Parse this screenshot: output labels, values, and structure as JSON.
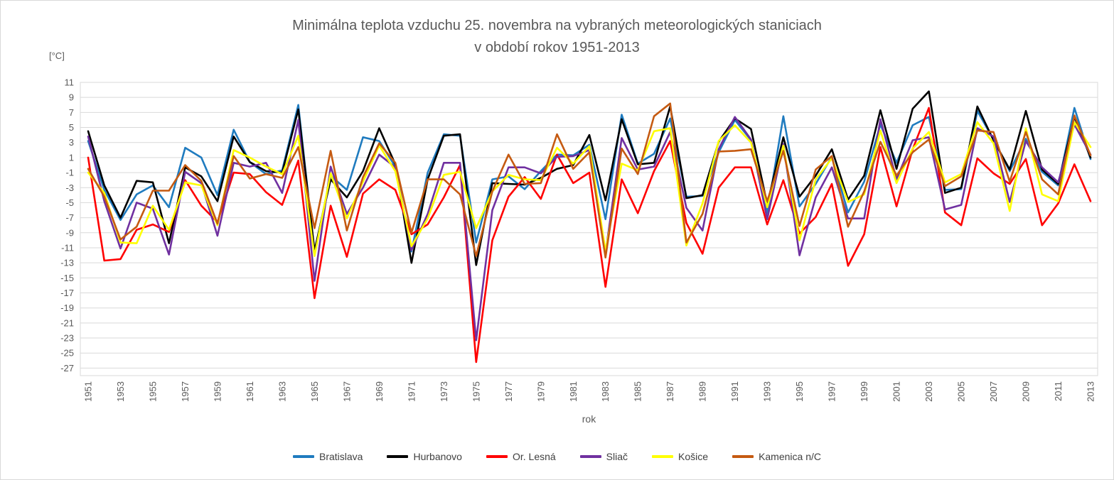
{
  "title": {
    "line1": "Minimálna teplota vzduchu 25. novembra na vybraných meteorologických staniciach",
    "line2": "v období rokov 1951-2013"
  },
  "y_axis": {
    "unit": "[°C]",
    "max": 11,
    "min": -28,
    "tick_max": 11,
    "tick_min": -27,
    "tick_step": 2
  },
  "x_axis": {
    "label": "rok",
    "first_year": 1951,
    "last_year": 2013,
    "label_step": 2
  },
  "colors": {
    "grid": "#d9d9d9",
    "plot_border": "#d9d9d9",
    "axis_text": "#595959",
    "title_text": "#595959",
    "legend_text": "#404040",
    "background": "#ffffff"
  },
  "chart_data": {
    "type": "line",
    "title": "Minimálna teplota vzduchu 25. novembra na vybraných meteorologických staniciach v období rokov 1951-2013",
    "xlabel": "rok",
    "ylabel": "[°C]",
    "ylim": [
      -27,
      11
    ],
    "grid": true,
    "legend_position": "bottom",
    "x": [
      1951,
      1952,
      1953,
      1954,
      1955,
      1956,
      1957,
      1958,
      1959,
      1960,
      1961,
      1962,
      1963,
      1964,
      1965,
      1966,
      1967,
      1968,
      1969,
      1970,
      1971,
      1972,
      1973,
      1974,
      1975,
      1976,
      1977,
      1978,
      1979,
      1980,
      1981,
      1982,
      1983,
      1984,
      1985,
      1986,
      1987,
      1988,
      1989,
      1990,
      1991,
      1992,
      1993,
      1994,
      1995,
      1996,
      1997,
      1998,
      1999,
      2000,
      2001,
      2002,
      2003,
      2004,
      2005,
      2006,
      2007,
      2008,
      2009,
      2010,
      2011,
      2012,
      2013
    ],
    "series": [
      {
        "name": "Bratislava",
        "color": "#1f7bbf",
        "values": [
          3.2,
          -3.3,
          -7.3,
          -3.9,
          -2.7,
          -5.6,
          2.3,
          1.0,
          -4.0,
          4.7,
          0.4,
          -1.2,
          -0.7,
          8.0,
          -11.6,
          -1.4,
          -3.3,
          3.7,
          3.2,
          -0.2,
          -11.5,
          -1.0,
          4.1,
          3.9,
          -10.3,
          -1.9,
          -1.5,
          -3.2,
          -0.8,
          1.4,
          1.3,
          2.7,
          -7.2,
          6.7,
          0.2,
          1.5,
          6.2,
          -4.2,
          -4.1,
          1.7,
          6.0,
          3.3,
          -6.4,
          6.5,
          -5.5,
          -2.5,
          1.1,
          -6.3,
          -2.2,
          5.4,
          0.3,
          5.3,
          6.4,
          -3.3,
          -3.2,
          7.2,
          3.4,
          -0.8,
          3.5,
          -0.9,
          -2.7,
          7.6,
          0.8
        ]
      },
      {
        "name": "Hurbanovo",
        "color": "#000000",
        "values": [
          4.5,
          -2.7,
          -7.0,
          -2.1,
          -2.3,
          -10.4,
          -0.3,
          -1.5,
          -4.8,
          3.8,
          0.4,
          -0.8,
          -1.0,
          7.4,
          -11.4,
          -1.9,
          -4.3,
          -0.8,
          4.9,
          0.1,
          -13.0,
          -1.9,
          3.9,
          4.1,
          -13.3,
          -2.4,
          -2.5,
          -2.6,
          -1.7,
          -0.5,
          0.0,
          4.0,
          -4.7,
          6.1,
          0.1,
          0.3,
          7.8,
          -4.4,
          -4.0,
          3.1,
          6.2,
          4.8,
          -5.2,
          3.7,
          -4.2,
          -1.4,
          2.1,
          -4.6,
          -1.4,
          7.3,
          -0.5,
          7.5,
          9.8,
          -3.7,
          -3.0,
          7.8,
          3.3,
          -0.6,
          7.2,
          -0.6,
          -2.5,
          6.4,
          1.0
        ]
      },
      {
        "name": "Or. Lesná",
        "color": "#ff0000",
        "values": [
          1.0,
          -12.7,
          -12.5,
          -8.6,
          -7.9,
          -8.9,
          -2.0,
          -5.4,
          -7.6,
          -1.0,
          -1.2,
          -3.6,
          -5.3,
          0.6,
          -17.7,
          -5.4,
          -12.2,
          -3.8,
          -1.9,
          -3.3,
          -9.2,
          -7.9,
          -4.3,
          0.0,
          -26.2,
          -10.0,
          -4.2,
          -1.6,
          -4.5,
          1.4,
          -2.4,
          -1.0,
          -16.2,
          -1.9,
          -6.4,
          -0.8,
          3.2,
          -7.7,
          -11.8,
          -3.0,
          -0.3,
          -0.3,
          -7.9,
          -2.0,
          -9.1,
          -6.9,
          -2.5,
          -13.4,
          -9.2,
          2.4,
          -5.5,
          2.1,
          7.6,
          -6.3,
          -8.0,
          0.9,
          -1.1,
          -2.5,
          0.8,
          -8.0,
          -5.1,
          0.1,
          -4.8
        ]
      },
      {
        "name": "Sliač",
        "color": "#7030a0",
        "values": [
          3.8,
          -4.8,
          -11.1,
          -5.0,
          -5.8,
          -11.9,
          -0.9,
          -2.4,
          -9.4,
          0.3,
          -0.2,
          0.3,
          -3.7,
          6.0,
          -15.4,
          -0.2,
          -6.5,
          -3.0,
          1.4,
          -0.3,
          -11.3,
          -6.5,
          0.3,
          0.3,
          -23.3,
          -6.0,
          -0.3,
          -0.3,
          -1.1,
          1.1,
          1.2,
          2.0,
          -11.7,
          3.6,
          -0.6,
          -0.2,
          4.4,
          -5.7,
          -8.7,
          2.1,
          6.4,
          3.4,
          -7.2,
          2.8,
          -12.0,
          -4.3,
          -0.3,
          -7.1,
          -7.1,
          6.1,
          -1.9,
          3.3,
          3.7,
          -5.9,
          -5.3,
          4.9,
          3.8,
          -4.9,
          3.2,
          -0.3,
          -2.3,
          5.4,
          1.4
        ]
      },
      {
        "name": "Košice",
        "color": "#ffff00",
        "values": [
          -1.0,
          -3.7,
          -10.3,
          -10.4,
          -5.4,
          -8.6,
          -2.3,
          -2.7,
          -8.0,
          2.0,
          1.0,
          -0.2,
          -1.2,
          3.9,
          -12.1,
          -1.1,
          -7.1,
          -2.2,
          2.6,
          -0.8,
          -10.8,
          -7.1,
          -1.3,
          -0.9,
          -8.4,
          -3.5,
          -1.3,
          -1.9,
          -2.0,
          2.3,
          0.2,
          2.5,
          -11.4,
          0.2,
          -0.7,
          4.5,
          4.9,
          -10.7,
          -5.1,
          3.2,
          5.3,
          3.0,
          -5.6,
          2.6,
          -10.0,
          -1.9,
          0.9,
          -4.9,
          -3.9,
          4.6,
          -2.4,
          2.2,
          4.4,
          -2.3,
          -1.2,
          5.7,
          2.9,
          -6.1,
          4.9,
          -3.9,
          -4.8,
          5.7,
          2.4
        ]
      },
      {
        "name": "Kamenica n/C",
        "color": "#c55a11",
        "values": [
          -0.5,
          -4.2,
          -9.9,
          -8.2,
          -3.4,
          -3.4,
          0.0,
          -2.1,
          -7.8,
          1.2,
          -1.8,
          -1.2,
          -1.7,
          2.4,
          -8.4,
          1.9,
          -8.7,
          -1.6,
          2.9,
          0.3,
          -9.0,
          -1.9,
          -1.9,
          -3.9,
          -12.1,
          -3.5,
          1.4,
          -2.5,
          -2.4,
          4.1,
          -0.5,
          1.7,
          -12.3,
          2.2,
          -1.2,
          6.5,
          8.2,
          -10.3,
          -6.5,
          1.8,
          1.9,
          2.1,
          -4.8,
          1.9,
          -8.1,
          -0.6,
          1.2,
          -8.2,
          -3.5,
          3.1,
          -1.4,
          1.7,
          3.4,
          -2.8,
          -1.5,
          4.6,
          4.4,
          -2.2,
          4.4,
          -1.9,
          -3.9,
          6.6,
          1.3
        ]
      }
    ]
  }
}
